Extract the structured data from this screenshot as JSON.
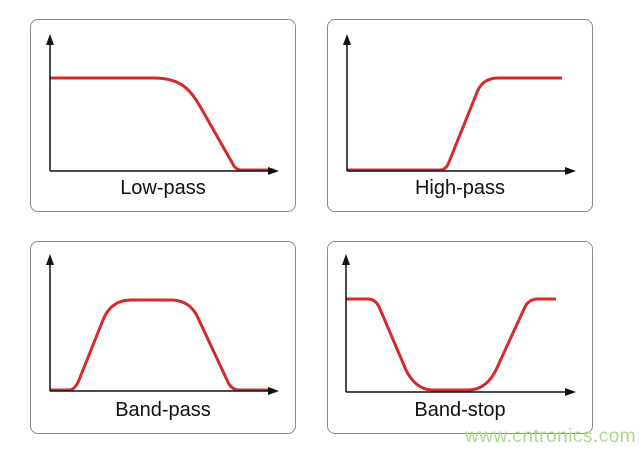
{
  "filters": [
    {
      "label": "Low-pass"
    },
    {
      "label": "High-pass"
    },
    {
      "label": "Band-pass"
    },
    {
      "label": "Band-stop"
    }
  ],
  "colors": {
    "response_curve": "#d42a2a",
    "axes": "#111111",
    "border": "#8a8a8a",
    "watermark": "#a8dc8c"
  },
  "watermark": "www.cntronics.com"
}
